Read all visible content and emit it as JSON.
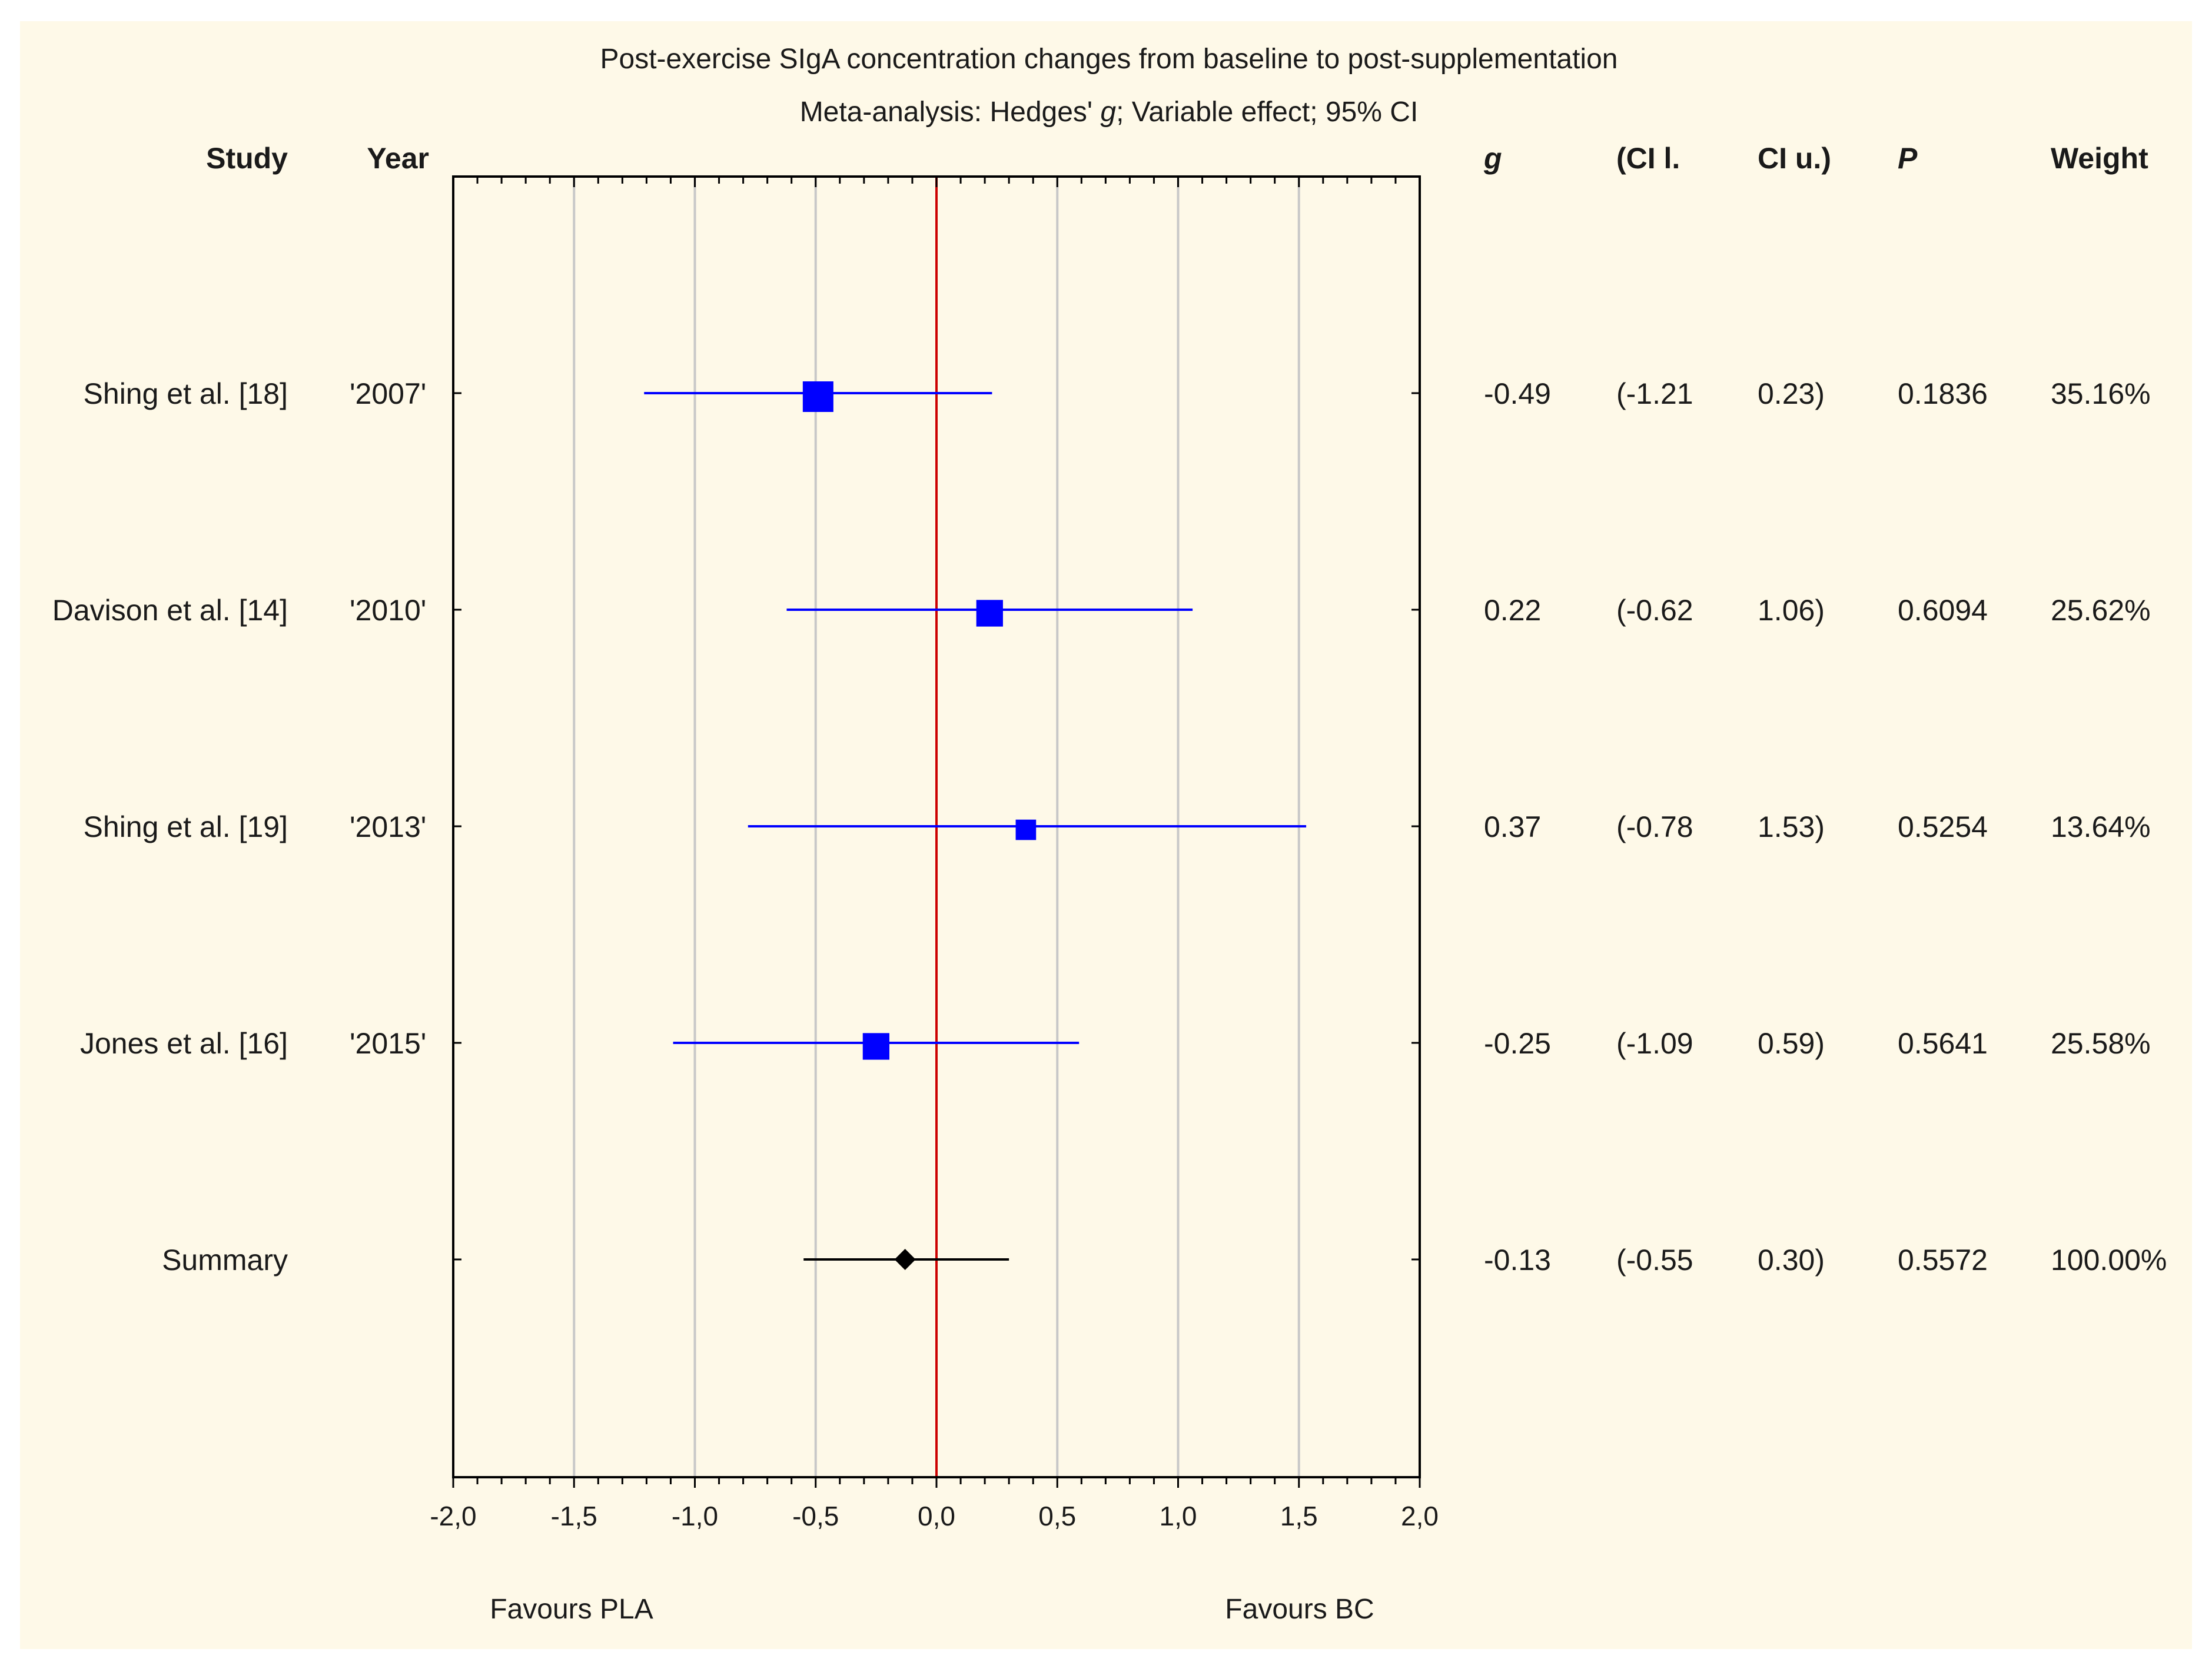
{
  "chart_data": {
    "type": "forest",
    "title": "Post-exercise SIgA concentration changes from baseline to post-supplementation",
    "subtitle_prefix": "Meta-analysis: Hedges' ",
    "subtitle_g": "g",
    "subtitle_suffix": "; Variable effect; 95% CI",
    "columns": {
      "study": "Study",
      "year": "Year",
      "g": "g",
      "ci_lower": "(CI l.",
      "ci_upper": "CI u.)",
      "p": "P",
      "weight": "Weight"
    },
    "studies": [
      {
        "study": "Shing et al. [18]",
        "year": "'2007'",
        "g": -0.49,
        "ci_lower": -1.21,
        "ci_upper": 0.23,
        "g_label": "-0.49",
        "ci_lower_label": "(-1.21",
        "ci_upper_label": "0.23)",
        "p": "0.1836",
        "weight": "35.16%",
        "weight_value": 35.16
      },
      {
        "study": "Davison et al. [14]",
        "year": "'2010'",
        "g": 0.22,
        "ci_lower": -0.62,
        "ci_upper": 1.06,
        "g_label": "0.22",
        "ci_lower_label": "(-0.62",
        "ci_upper_label": "1.06)",
        "p": "0.6094",
        "weight": "25.62%",
        "weight_value": 25.62
      },
      {
        "study": "Shing et al. [19]",
        "year": "'2013'",
        "g": 0.37,
        "ci_lower": -0.78,
        "ci_upper": 1.53,
        "g_label": "0.37",
        "ci_lower_label": "(-0.78",
        "ci_upper_label": "1.53)",
        "p": "0.5254",
        "weight": "13.64%",
        "weight_value": 13.64
      },
      {
        "study": "Jones et al. [16]",
        "year": "'2015'",
        "g": -0.25,
        "ci_lower": -1.09,
        "ci_upper": 0.59,
        "g_label": "-0.25",
        "ci_lower_label": "(-1.09",
        "ci_upper_label": "0.59)",
        "p": "0.5641",
        "weight": "25.58%",
        "weight_value": 25.58
      }
    ],
    "summary": {
      "study": "Summary",
      "year": "",
      "g": -0.13,
      "ci_lower": -0.55,
      "ci_upper": 0.3,
      "g_label": "-0.13",
      "ci_lower_label": "(-0.55",
      "ci_upper_label": "0.30)",
      "p": "0.5572",
      "weight": "100.00%"
    },
    "x_ticks": [
      -2.0,
      -1.5,
      -1.0,
      -0.5,
      0.0,
      0.5,
      1.0,
      1.5,
      2.0
    ],
    "x_tick_labels": [
      "-2,0",
      "-1,5",
      "-1,0",
      "-0,5",
      "0,0",
      "0,5",
      "1,0",
      "1,5",
      "2,0"
    ],
    "xlim": [
      -2.0,
      2.0
    ],
    "reference_line": 0.0,
    "favours_left": "Favours PLA",
    "favours_right": "Favours BC",
    "colors": {
      "background": "#fef9e8",
      "study_marker": "#0000ff",
      "study_line": "#0000ff",
      "summary_marker": "#000000",
      "reference_line": "#cc0000",
      "gridline": "#c8c8c8",
      "axis": "#000000"
    }
  }
}
